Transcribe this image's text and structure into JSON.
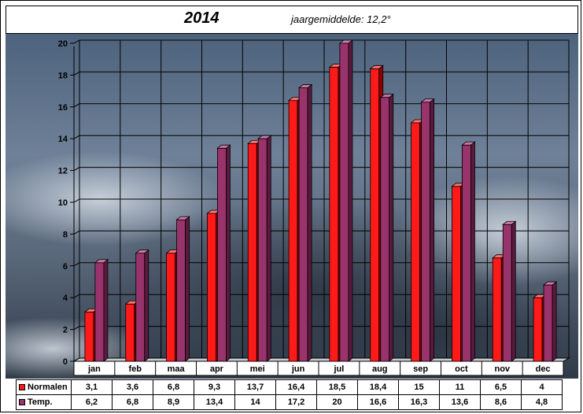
{
  "header": {
    "title": "2014",
    "subtitle": "jaargemiddelde: 12,2°"
  },
  "colors": {
    "normalen": "#ff1a1a",
    "temp": "#99336b"
  },
  "chart_data": {
    "type": "bar",
    "title": "2014",
    "subtitle": "jaargemiddelde: 12,2°",
    "categories": [
      "jan",
      "feb",
      "maa",
      "apr",
      "mei",
      "jun",
      "jul",
      "aug",
      "sep",
      "oct",
      "nov",
      "dec"
    ],
    "series": [
      {
        "name": "Normalen",
        "values": [
          3.1,
          3.6,
          6.8,
          9.3,
          13.7,
          16.4,
          18.5,
          18.4,
          15,
          11,
          6.5,
          4
        ]
      },
      {
        "name": "Temp.",
        "values": [
          6.2,
          6.8,
          8.9,
          13.4,
          14,
          17.2,
          20,
          16.6,
          16.3,
          13.6,
          8.6,
          4.8
        ]
      }
    ],
    "ylim": [
      0,
      20
    ],
    "yticks": [
      "0",
      "2",
      "4",
      "6",
      "8",
      "10",
      "12",
      "14",
      "16",
      "18",
      "20"
    ],
    "grid": true,
    "legend": "data table below chart"
  },
  "table": {
    "rows": [
      {
        "label": "Normalen",
        "values": [
          "3,1",
          "3,6",
          "6,8",
          "9,3",
          "13,7",
          "16,4",
          "18,5",
          "18,4",
          "15",
          "11",
          "6,5",
          "4"
        ]
      },
      {
        "label": "Temp.",
        "values": [
          "6,2",
          "6,8",
          "8,9",
          "13,4",
          "14",
          "17,2",
          "20",
          "16,6",
          "16,3",
          "13,6",
          "8,6",
          "4,8"
        ]
      }
    ]
  }
}
